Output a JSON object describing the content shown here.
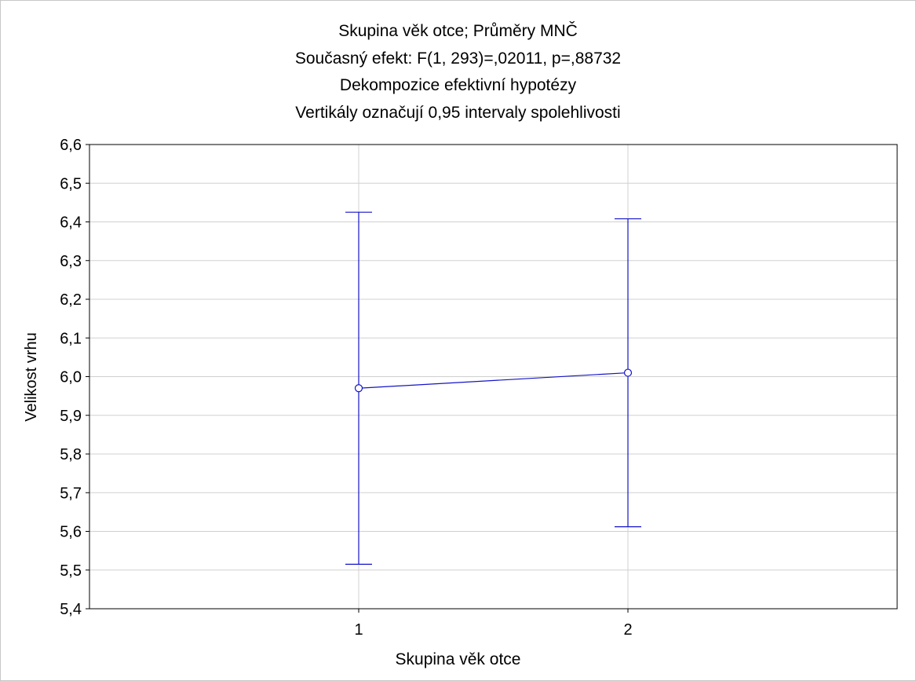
{
  "chart_data": {
    "type": "line",
    "title": [
      "Skupina věk otce; Průměry MNČ",
      "Současný efekt: F(1, 293)=,02011, p=,88732",
      "Dekompozice efektivní hypotézy",
      "Vertikály označují 0,95 intervaly spolehlivosti"
    ],
    "xlabel": "Skupina věk otce",
    "ylabel": "Velikost vrhu",
    "categories": [
      "1",
      "2"
    ],
    "series": [
      {
        "values": [
          5.97,
          6.01
        ],
        "ci_lower": [
          5.515,
          5.612
        ],
        "ci_upper": [
          6.425,
          6.408
        ]
      }
    ],
    "ylim": [
      5.4,
      6.6
    ],
    "yticks": [
      5.4,
      5.5,
      5.6,
      5.7,
      5.8,
      5.9,
      6.0,
      6.1,
      6.2,
      6.3,
      6.4,
      6.5,
      6.6
    ],
    "ytick_labels": [
      "5,4",
      "5,5",
      "5,6",
      "5,7",
      "5,8",
      "5,9",
      "6,0",
      "6,1",
      "6,2",
      "6,3",
      "6,4",
      "6,5",
      "6,6"
    ],
    "grid": true,
    "line_color": "#1414c8",
    "grid_color": "#d0d0d0"
  }
}
